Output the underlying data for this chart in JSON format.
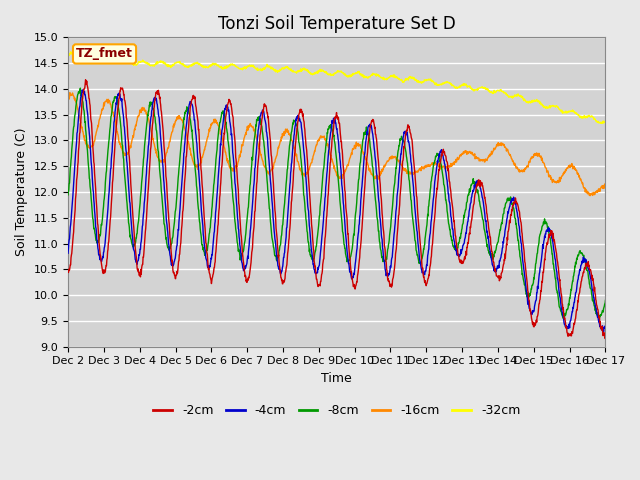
{
  "title": "Tonzi Soil Temperature Set D",
  "xlabel": "Time",
  "ylabel": "Soil Temperature (C)",
  "ylim": [
    9.0,
    15.0
  ],
  "yticks": [
    9.0,
    9.5,
    10.0,
    10.5,
    11.0,
    11.5,
    12.0,
    12.5,
    13.0,
    13.5,
    14.0,
    14.5,
    15.0
  ],
  "xtick_labels": [
    "Dec 2",
    "Dec 3",
    "Dec 4",
    "Dec 5",
    "Dec 6",
    "Dec 7",
    "Dec 8",
    "Dec 9",
    "Dec 10",
    "Dec 11",
    "Dec 12",
    "Dec 13",
    "Dec 14",
    "Dec 15",
    "Dec 16",
    "Dec 17"
  ],
  "colors": {
    "-2cm": "#cc0000",
    "-4cm": "#0000cc",
    "-8cm": "#009900",
    "-16cm": "#ff8800",
    "-32cm": "#ffff00"
  },
  "legend_label": "TZ_fmet",
  "fig_facecolor": "#e8e8e8",
  "plot_facecolor": "#d3d3d3",
  "grid_color": "#ffffff",
  "title_fontsize": 12,
  "label_fontsize": 9,
  "tick_fontsize": 8
}
